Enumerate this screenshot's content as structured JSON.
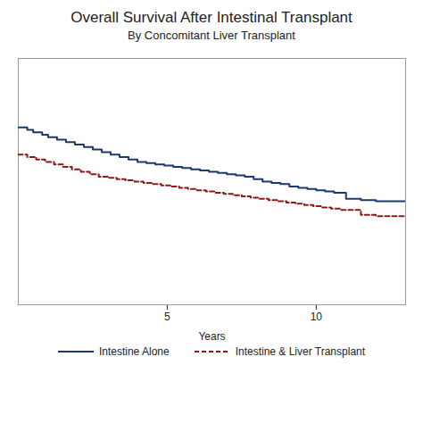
{
  "chart_data": {
    "type": "step",
    "title": "Overall Survival After Intestinal Transplant",
    "subtitle": "By Concomitant Liver Transplant",
    "xlabel": "Years",
    "xlim": [
      0,
      13
    ],
    "xticks": [
      5,
      10
    ],
    "ylim": [
      0.0,
      1.0
    ],
    "tick_labels": "x",
    "grid": false,
    "legend": "bottom",
    "series": [
      {
        "name": "Intestine Alone",
        "color": "#1a3a6b",
        "line_style": "solid",
        "x": [
          0,
          0.3,
          0.5,
          0.8,
          1.0,
          1.3,
          1.6,
          1.9,
          2.2,
          2.5,
          2.8,
          3.1,
          3.4,
          3.7,
          4.0,
          4.3,
          4.6,
          4.9,
          5.2,
          5.5,
          5.8,
          6.1,
          6.4,
          6.7,
          7.0,
          7.3,
          7.6,
          7.9,
          8.2,
          8.5,
          8.8,
          9.1,
          9.4,
          9.7,
          10.0,
          10.3,
          10.6,
          11.0,
          11.5,
          12.0,
          12.5,
          13.0
        ],
        "values": [
          0.72,
          0.71,
          0.7,
          0.69,
          0.68,
          0.67,
          0.66,
          0.65,
          0.64,
          0.63,
          0.62,
          0.61,
          0.6,
          0.59,
          0.58,
          0.575,
          0.57,
          0.565,
          0.56,
          0.555,
          0.55,
          0.545,
          0.54,
          0.535,
          0.53,
          0.525,
          0.52,
          0.51,
          0.5,
          0.495,
          0.49,
          0.48,
          0.475,
          0.47,
          0.465,
          0.46,
          0.455,
          0.43,
          0.425,
          0.42,
          0.42,
          0.42
        ]
      },
      {
        "name": "Intestine & Liver Transplant",
        "color": "#8b1a1a",
        "line_style": "dashed",
        "x": [
          0,
          0.3,
          0.6,
          0.9,
          1.2,
          1.5,
          1.8,
          2.1,
          2.4,
          2.7,
          3.0,
          3.3,
          3.6,
          3.9,
          4.2,
          4.5,
          4.8,
          5.1,
          5.4,
          5.7,
          6.0,
          6.3,
          6.6,
          6.9,
          7.2,
          7.5,
          7.8,
          8.1,
          8.4,
          8.7,
          9.0,
          9.3,
          9.6,
          9.9,
          10.2,
          10.5,
          10.8,
          11.5,
          12.0,
          12.5,
          13.0
        ],
        "values": [
          0.61,
          0.6,
          0.59,
          0.58,
          0.57,
          0.56,
          0.55,
          0.54,
          0.53,
          0.52,
          0.515,
          0.51,
          0.505,
          0.5,
          0.495,
          0.49,
          0.485,
          0.48,
          0.475,
          0.47,
          0.465,
          0.46,
          0.455,
          0.45,
          0.445,
          0.44,
          0.435,
          0.43,
          0.425,
          0.42,
          0.415,
          0.41,
          0.405,
          0.4,
          0.395,
          0.39,
          0.385,
          0.365,
          0.36,
          0.36,
          0.36
        ]
      }
    ]
  }
}
